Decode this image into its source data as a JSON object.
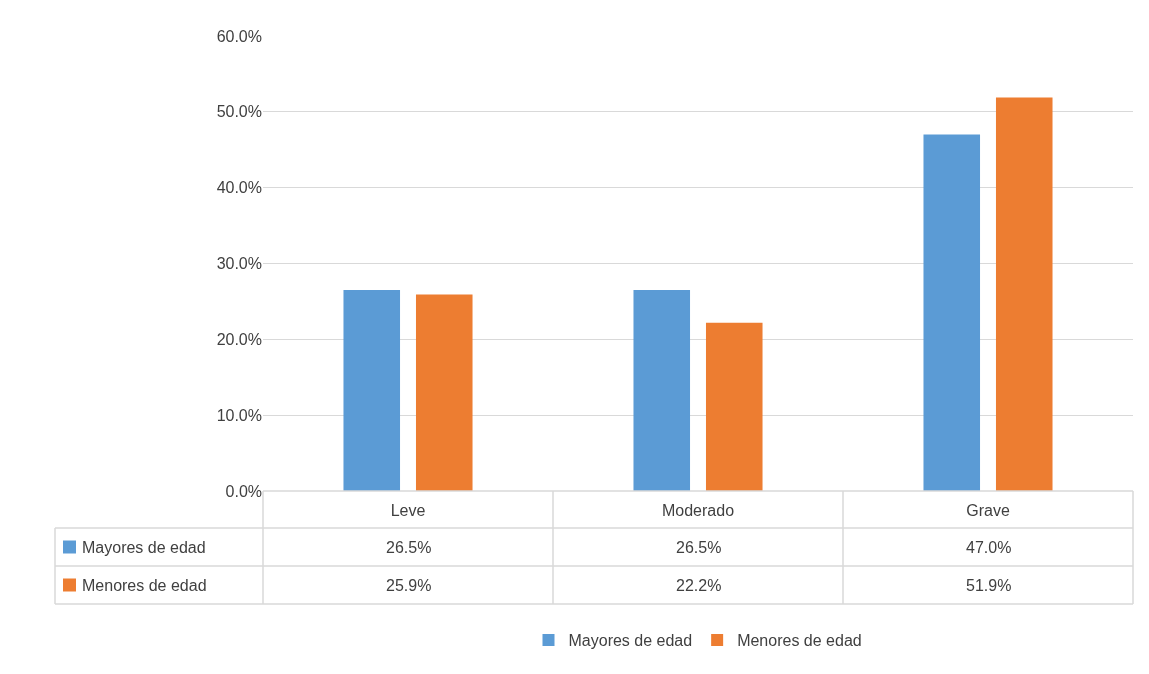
{
  "chart_data": {
    "type": "bar",
    "categories": [
      "Leve",
      "Moderado",
      "Grave"
    ],
    "series": [
      {
        "name": "Mayores de edad",
        "color": "#5b9bd5",
        "values": [
          26.5,
          26.5,
          47.0
        ],
        "value_labels": [
          "26.5%",
          "26.5%",
          "47.0%"
        ]
      },
      {
        "name": "Menores de edad",
        "color": "#ed7d31",
        "values": [
          25.9,
          22.2,
          51.9
        ],
        "value_labels": [
          "25.9%",
          "22.2%",
          "51.9%"
        ]
      }
    ],
    "ylim": [
      0,
      60
    ],
    "yticks": [
      {
        "value": 0,
        "label": "0.0%"
      },
      {
        "value": 10,
        "label": "10.0%"
      },
      {
        "value": 20,
        "label": "20.0%"
      },
      {
        "value": 30,
        "label": "30.0%"
      },
      {
        "value": 40,
        "label": "40.0%"
      },
      {
        "value": 50,
        "label": "50.0%"
      },
      {
        "value": 60,
        "label": "60.0%"
      }
    ],
    "grid": "y",
    "legend": "bottom"
  }
}
